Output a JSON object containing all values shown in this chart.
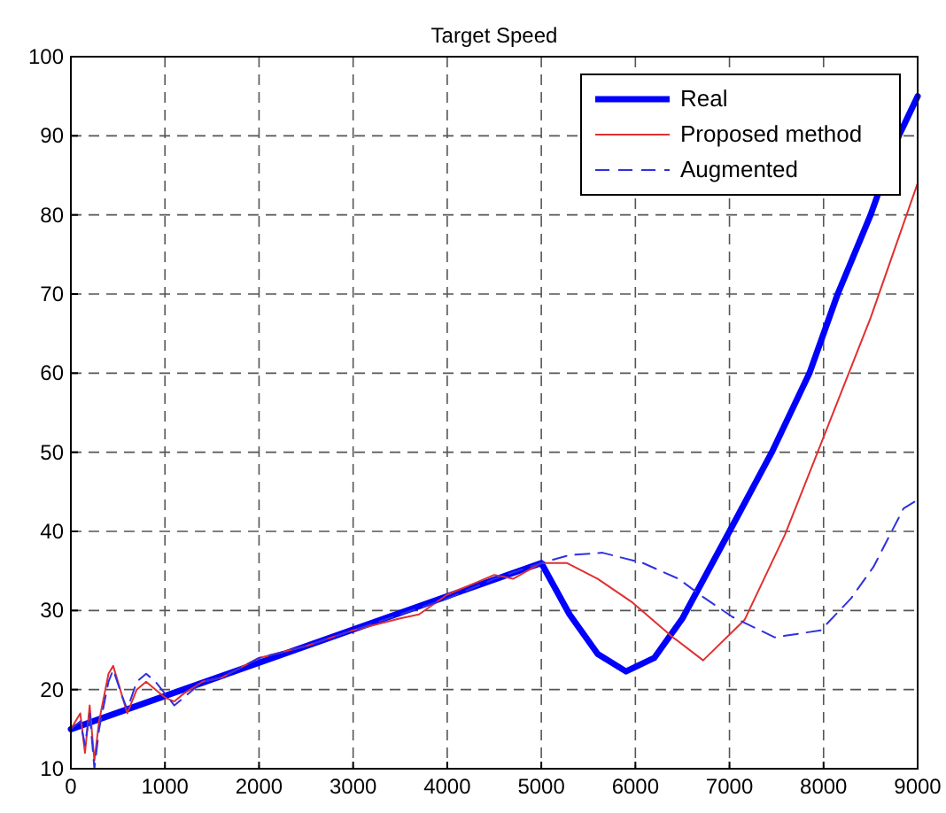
{
  "chart_data": {
    "type": "line",
    "title": "Target Speed",
    "xlim": [
      0,
      9000
    ],
    "xticks": [
      0,
      1000,
      2000,
      3000,
      4000,
      5000,
      6000,
      7000,
      8000,
      9000
    ],
    "ylim": [
      10,
      100
    ],
    "yticks": [
      10,
      20,
      30,
      40,
      50,
      60,
      70,
      80,
      90,
      100
    ],
    "grid": true,
    "legend": "top right",
    "series": [
      {
        "name": "Real",
        "color": "#0000ff",
        "line_style": "solid",
        "x": [
          0,
          5000,
          5300,
          5600,
          5900,
          6200,
          6500,
          7000,
          7450,
          7850,
          8150,
          8500,
          8800,
          9000
        ],
        "values": [
          15,
          36,
          29.5,
          24.5,
          22.3,
          24,
          29,
          40,
          50,
          60,
          70,
          80,
          90,
          95
        ]
      },
      {
        "name": "Proposed method",
        "color": "#e03030",
        "line_style": "solid",
        "x": [
          0,
          100,
          150,
          200,
          250,
          300,
          400,
          450,
          550,
          600,
          700,
          800,
          900,
          1000,
          1100,
          1200,
          1400,
          1600,
          2000,
          2500,
          3000,
          3500,
          3700,
          4000,
          4300,
          4500,
          4700,
          5000,
          5270,
          5600,
          5970,
          6400,
          6720,
          7160,
          7590,
          7970,
          8500,
          9000
        ],
        "values": [
          15,
          17,
          12,
          18,
          11,
          16,
          22,
          23,
          19,
          17,
          20,
          21,
          20,
          19,
          18.5,
          19.5,
          21,
          21.5,
          24,
          25.5,
          27.5,
          29,
          29.5,
          32,
          33.5,
          34.5,
          34,
          36,
          36,
          34,
          31,
          26.6,
          23.7,
          28.8,
          39.6,
          51,
          67,
          84
        ]
      },
      {
        "name": "Augmented",
        "color": "#3030e0",
        "line_style": "dashed",
        "x": [
          0,
          100,
          150,
          200,
          250,
          300,
          400,
          450,
          550,
          600,
          700,
          800,
          900,
          1000,
          1100,
          1200,
          1400,
          1600,
          2000,
          2500,
          3000,
          3500,
          4000,
          4500,
          5000,
          5300,
          5650,
          6080,
          6460,
          6720,
          7030,
          7480,
          7970,
          8290,
          8530,
          8850,
          9000
        ],
        "values": [
          15,
          16,
          13,
          17,
          10,
          15,
          21,
          22.5,
          19,
          17.5,
          21,
          22,
          21,
          19.5,
          18,
          19,
          21,
          21.5,
          24,
          25.5,
          27.5,
          29.5,
          31.5,
          34,
          36,
          37,
          37.3,
          36,
          34,
          31.7,
          29.2,
          26.6,
          27.5,
          31.5,
          35.5,
          42.9,
          44
        ]
      }
    ]
  }
}
